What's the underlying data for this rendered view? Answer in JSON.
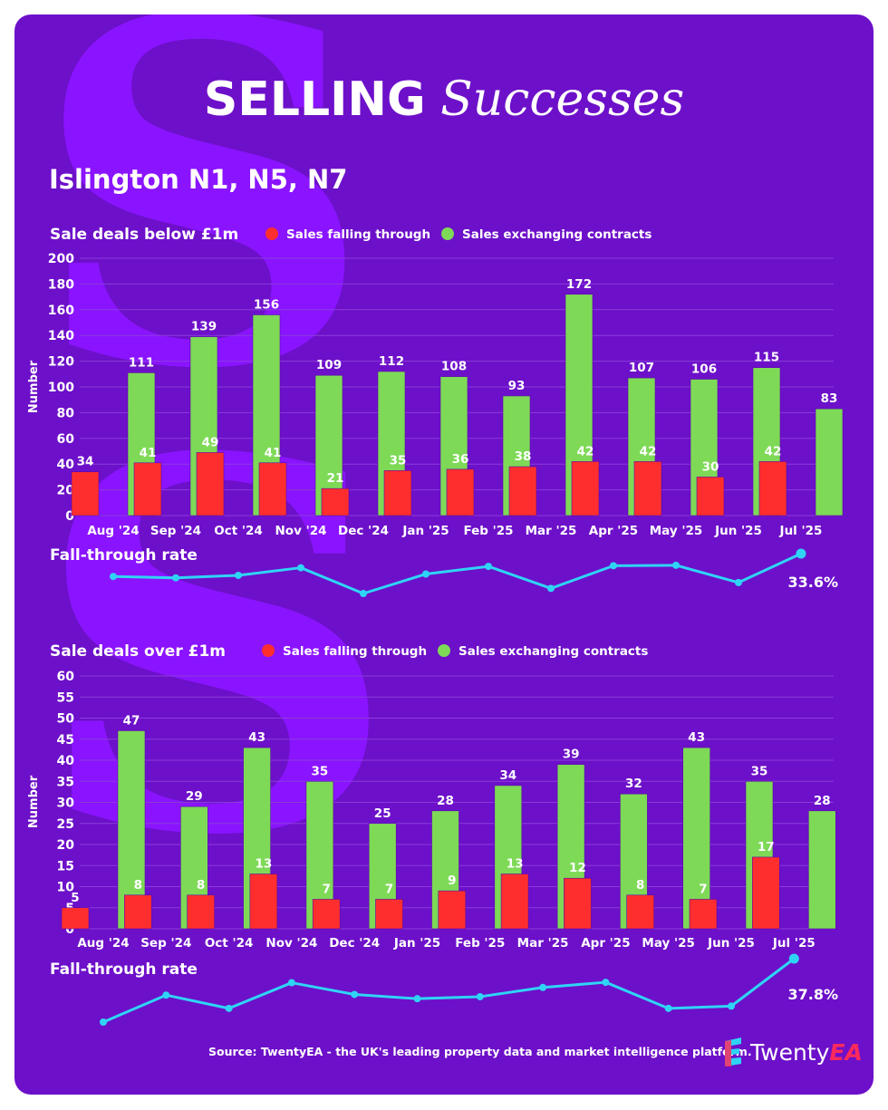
{
  "title": {
    "bold": "SELLING",
    "italic": "Successes"
  },
  "area": "Islington N1, N5, N7",
  "colors": {
    "background": "#6d10c9",
    "falling": "#ff2e2e",
    "exchanging": "#7ed957",
    "rate_line": "#2fd4f5",
    "gridline": "#8a3cdb"
  },
  "chart_data": [
    {
      "type": "bar",
      "title": "Sale deals below £1m",
      "ylabel": "Number",
      "ylim": [
        0,
        200
      ],
      "yticks": [
        0,
        20,
        40,
        60,
        80,
        100,
        120,
        140,
        160,
        180,
        200
      ],
      "categories": [
        "Aug '24",
        "Sep '24",
        "Oct '24",
        "Nov '24",
        "Dec '24",
        "Jan '25",
        "Feb '25",
        "Mar '25",
        "Apr '25",
        "May '25",
        "Jun '25",
        "Jul '25"
      ],
      "series": [
        {
          "name": "Sales falling through",
          "values": [
            34,
            41,
            49,
            41,
            21,
            35,
            36,
            38,
            42,
            42,
            30,
            42
          ]
        },
        {
          "name": "Sales exchanging contracts",
          "values": [
            111,
            139,
            156,
            109,
            112,
            108,
            93,
            172,
            107,
            106,
            115,
            83
          ]
        }
      ],
      "rate": {
        "label": "Fall-through rate",
        "values": [
          23.4,
          22.8,
          23.9,
          27.3,
          15.8,
          24.5,
          27.9,
          18.1,
          28.2,
          28.4,
          20.7,
          33.6
        ],
        "last_label": "33.6%"
      }
    },
    {
      "type": "bar",
      "title": "Sale deals over £1m",
      "ylabel": "Number",
      "ylim": [
        0,
        60
      ],
      "yticks": [
        0,
        5,
        10,
        15,
        20,
        25,
        30,
        35,
        40,
        45,
        50,
        55,
        60
      ],
      "categories": [
        "Aug '24",
        "Sep '24",
        "Oct '24",
        "Nov '24",
        "Dec '24",
        "Jan '25",
        "Feb '25",
        "Mar '25",
        "Apr '25",
        "May '25",
        "Jun '25",
        "Jul '25"
      ],
      "series": [
        {
          "name": "Sales falling through",
          "values": [
            5,
            8,
            8,
            13,
            7,
            7,
            9,
            13,
            12,
            8,
            7,
            17
          ]
        },
        {
          "name": "Sales exchanging contracts",
          "values": [
            47,
            29,
            43,
            35,
            25,
            28,
            34,
            39,
            32,
            43,
            35,
            28
          ]
        }
      ],
      "rate": {
        "label": "Fall-through rate",
        "values": [
          9.6,
          21.6,
          15.7,
          27.1,
          21.9,
          20.0,
          20.9,
          25.0,
          27.3,
          15.7,
          16.7,
          37.8
        ],
        "last_label": "37.8%"
      }
    }
  ],
  "footer": {
    "source": "Source: TwentyEA - the UK's leading property data and market intelligence platform.",
    "logo_text": "Twenty",
    "logo_accent": "EA"
  }
}
